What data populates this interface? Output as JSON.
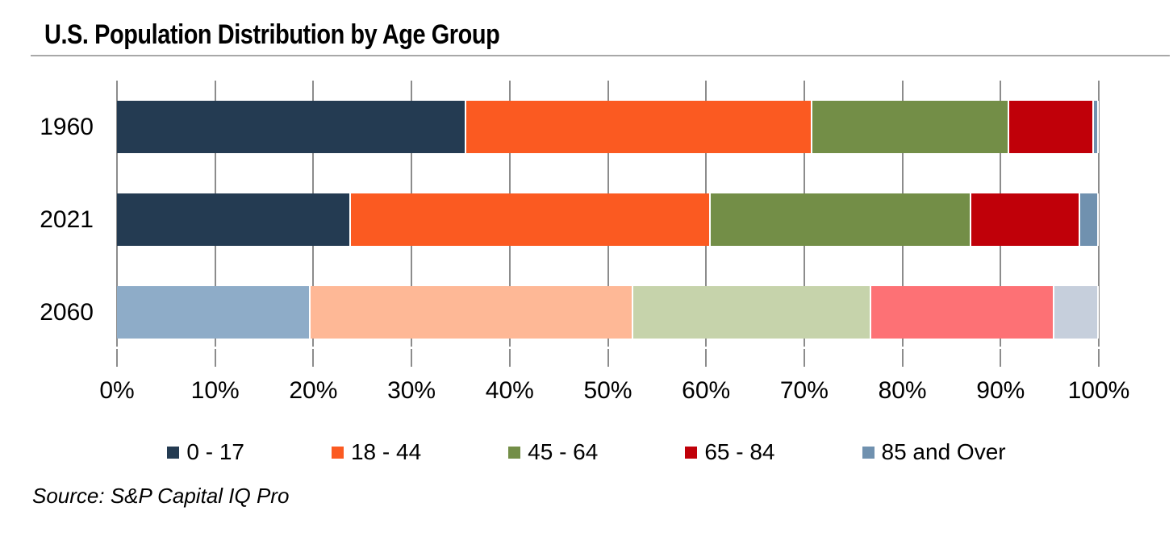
{
  "title": "U.S. Population Distribution by Age Group",
  "source_note": "Source: S&P Capital IQ Pro",
  "colors": {
    "gridline": "#8c8c8c",
    "divider": "#a8a8a8",
    "navy": "#243B52",
    "orange": "#FB5A21",
    "olive": "#738E47",
    "dark_red": "#C00009",
    "steel_blue": "#7091AF",
    "muted_blue": "#8EACC8",
    "muted_peach": "#FEB896",
    "muted_green": "#C6D3AB",
    "muted_coral": "#FD7175",
    "muted_pale_blue": "#C6CFDC"
  },
  "chart_data": {
    "type": "bar",
    "orientation": "horizontal",
    "stacked": true,
    "grid": true,
    "legend_position": "bottom",
    "title": "U.S. Population Distribution by Age Group",
    "xlabel": "",
    "ylabel": "",
    "xlim": [
      0,
      100
    ],
    "x_ticks": [
      "0%",
      "10%",
      "20%",
      "30%",
      "40%",
      "50%",
      "60%",
      "70%",
      "80%",
      "90%",
      "100%"
    ],
    "categories": [
      "1960",
      "2021",
      "2060"
    ],
    "series": [
      {
        "name": "0 - 17",
        "legend_color": "#243B52",
        "colors": [
          "#243B52",
          "#243B52",
          "#8EACC8"
        ],
        "values": [
          35.6,
          23.8,
          19.7
        ]
      },
      {
        "name": "18 - 44",
        "legend_color": "#FB5A21",
        "colors": [
          "#FB5A21",
          "#FB5A21",
          "#FEB896"
        ],
        "values": [
          35.2,
          36.7,
          32.9
        ]
      },
      {
        "name": "45 - 64",
        "legend_color": "#738E47",
        "colors": [
          "#738E47",
          "#738E47",
          "#C6D3AB"
        ],
        "values": [
          20.1,
          26.5,
          24.2
        ]
      },
      {
        "name": "65 - 84",
        "legend_color": "#C00009",
        "colors": [
          "#C00009",
          "#C00009",
          "#FD7175"
        ],
        "values": [
          8.6,
          11.1,
          18.7
        ]
      },
      {
        "name": "85 and Over",
        "legend_color": "#7091AF",
        "colors": [
          "#7091AF",
          "#7091AF",
          "#C6CFDC"
        ],
        "values": [
          0.5,
          1.9,
          4.5
        ]
      }
    ]
  }
}
